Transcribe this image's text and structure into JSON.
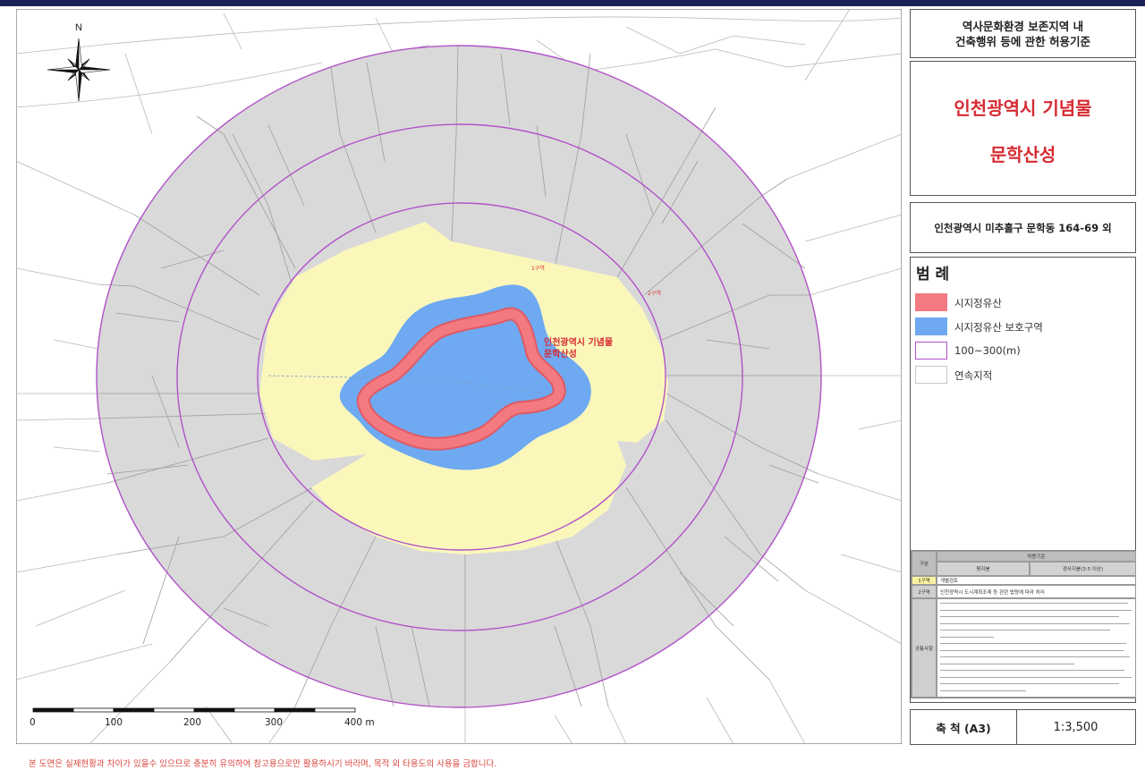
{
  "panel": {
    "title_line1": "역사문화환경 보존지역 내",
    "title_line2": "건축행위 등에 관한 허용기준",
    "heritage_type": "인천광역시 기념물",
    "heritage_name": "문학산성",
    "address": "인천광역시 미추홀구 문학동 164-69 외"
  },
  "legend": {
    "title": "범 례",
    "items": [
      {
        "label": "시지정유산",
        "color": "#f27a80",
        "style": "fill"
      },
      {
        "label": "시지정유산 보호구역",
        "color": "#6ea9f2",
        "style": "fill"
      },
      {
        "label": "100~300(m)",
        "color": "#b152c9",
        "style": "outline"
      },
      {
        "label": "연속지적",
        "color": "#c8c8c8",
        "style": "outline"
      }
    ]
  },
  "table": {
    "col_header": "구분",
    "header": "허용기준",
    "sub_flat": "평지붕",
    "sub_slope": "경사지붕(3:5 이상)",
    "row1_label": "1구역",
    "row1_text": "개별검토",
    "row2_label": "2구역",
    "row2_text": "인천광역시 도시계획조례 등 관련 법령에 따라 처리",
    "row3_label": "공통사항"
  },
  "scale": {
    "label": "축 척 (A3)",
    "value": "1:3,500"
  },
  "map": {
    "north": "N",
    "heritage_label_line1": "인천광역시 기념물",
    "heritage_label_line2": "문학산성",
    "zone1_label": "1구역",
    "zone2_label": "2구역",
    "scalebar_ticks": [
      "0",
      "100",
      "200",
      "300",
      "400 m"
    ]
  },
  "colors": {
    "buffer_gray": "#d9d9d9",
    "zone1_yellow": "#fbf7bb",
    "protection_blue": "#6ea9f2",
    "heritage_red": "#f27a80",
    "ring_purple": "#b152c9",
    "label_red": "#d62b33",
    "frame_navy": "#1c2257"
  },
  "footer": "본 도면은 실제현황과 차이가 있을수 있으므로 충분히 유의하여 참고용으로만 활용하시기 바라며, 목적 외 타용도의 사용을 금합니다."
}
